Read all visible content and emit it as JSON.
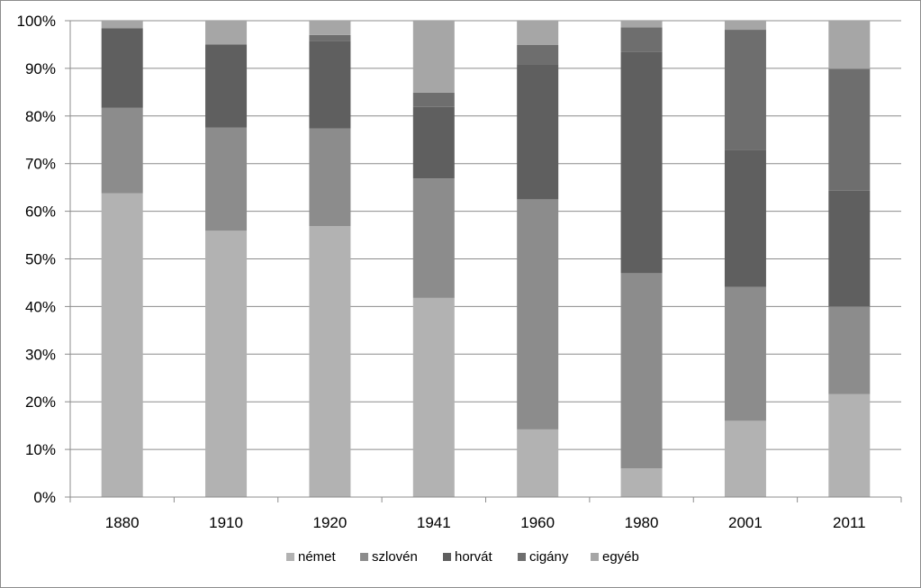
{
  "chart_data": {
    "type": "bar",
    "stacked": true,
    "percent": true,
    "title": "",
    "xlabel": "",
    "ylabel": "",
    "ylim": [
      0,
      100
    ],
    "y_ticks": [
      "0%",
      "10%",
      "20%",
      "30%",
      "40%",
      "50%",
      "60%",
      "70%",
      "80%",
      "90%",
      "100%"
    ],
    "grid": true,
    "legend_position": "bottom",
    "categories": [
      "1880",
      "1910",
      "1920",
      "1941",
      "1960",
      "1980",
      "2001",
      "2011"
    ],
    "series": [
      {
        "name": "német",
        "color": "#b2b2b2",
        "values": [
          63.8,
          55.9,
          56.9,
          41.8,
          14.2,
          6.0,
          16.0,
          21.6
        ]
      },
      {
        "name": "szlovén",
        "color": "#8c8c8c",
        "values": [
          17.9,
          21.7,
          20.5,
          25.1,
          48.3,
          41.0,
          28.1,
          18.4
        ]
      },
      {
        "name": "horvát",
        "color": "#5f5f5f",
        "values": [
          16.7,
          17.4,
          18.4,
          15.0,
          28.4,
          46.4,
          28.8,
          24.3
        ]
      },
      {
        "name": "cigány",
        "color": "#6e6e6e",
        "values": [
          0.0,
          0.0,
          1.2,
          3.0,
          4.0,
          5.2,
          25.2,
          25.6
        ]
      },
      {
        "name": "egyéb",
        "color": "#a6a6a6",
        "values": [
          1.6,
          5.0,
          3.0,
          15.1,
          5.1,
          1.4,
          1.9,
          10.1
        ]
      }
    ]
  }
}
